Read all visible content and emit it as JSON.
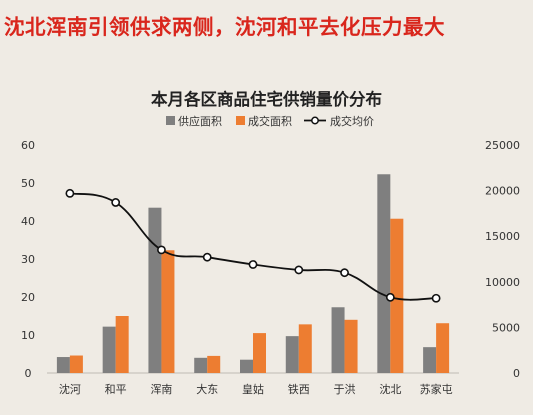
{
  "headline": "沈北浑南引领供求两侧，沈河和平去化压力最大",
  "chart_data": {
    "type": "bar",
    "title": "本月各区商品住宅供销量价分布",
    "categories": [
      "沈河",
      "和平",
      "浑南",
      "大东",
      "皇姑",
      "铁西",
      "于洪",
      "沈北",
      "苏家屯"
    ],
    "series": [
      {
        "name": "供应面积",
        "type": "bar",
        "axis": "left",
        "color": "#7f7f7f",
        "values": [
          4.2,
          12.2,
          43.5,
          4.0,
          3.5,
          9.7,
          17.3,
          52.3,
          6.8
        ]
      },
      {
        "name": "成交面积",
        "type": "bar",
        "axis": "left",
        "color": "#ed7d31",
        "values": [
          4.6,
          15.0,
          32.3,
          4.5,
          10.5,
          12.8,
          14.0,
          40.6,
          13.1
        ]
      },
      {
        "name": "成交均价",
        "type": "line",
        "axis": "right",
        "color": "#111111",
        "values": [
          19700,
          18700,
          13500,
          12700,
          11900,
          11300,
          11000,
          8300,
          8200
        ]
      }
    ],
    "left_ylim": [
      0,
      60
    ],
    "left_ticks": [
      0,
      10,
      20,
      30,
      40,
      50,
      60
    ],
    "right_ylim": [
      0,
      25000
    ],
    "right_ticks": [
      0,
      5000,
      10000,
      15000,
      20000,
      25000
    ],
    "legend_position": "top-center",
    "grid": false
  }
}
